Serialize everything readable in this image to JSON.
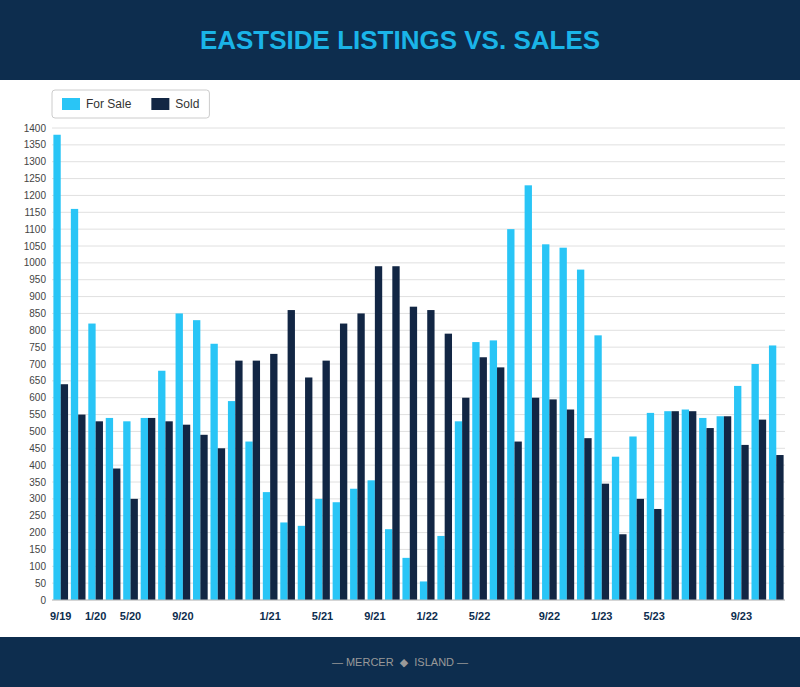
{
  "chart_data": {
    "type": "bar",
    "title": "EASTSIDE LISTINGS VS. SALES",
    "annotations": [
      "— MERCER  ◆  ISLAND —"
    ],
    "categories": [
      "9/19",
      null,
      "1/20",
      null,
      "5/20",
      null,
      null,
      "9/20",
      null,
      null,
      null,
      null,
      "1/21",
      null,
      null,
      "5/21",
      null,
      null,
      "9/21",
      null,
      null,
      "1/22",
      null,
      null,
      "5/22",
      null,
      null,
      null,
      "9/22",
      null,
      null,
      "1/23",
      null,
      null,
      "5/23",
      null,
      null,
      null,
      null,
      "9/23",
      null,
      null
    ],
    "series": [
      {
        "name": "For Sale",
        "color": "#29c5f6",
        "values": [
          1380,
          1160,
          820,
          540,
          530,
          540,
          680,
          850,
          830,
          760,
          590,
          470,
          320,
          230,
          220,
          300,
          290,
          330,
          355,
          210,
          125,
          55,
          190,
          530,
          765,
          770,
          1100,
          1230,
          1055,
          1045,
          980,
          785,
          425,
          485,
          555,
          560,
          565,
          540,
          545,
          635,
          700,
          755
        ]
      },
      {
        "name": "Sold",
        "color": "#122644",
        "values": [
          640,
          550,
          530,
          390,
          300,
          540,
          530,
          520,
          490,
          450,
          710,
          710,
          730,
          860,
          660,
          710,
          820,
          850,
          990,
          990,
          870,
          860,
          790,
          600,
          720,
          690,
          470,
          600,
          595,
          565,
          480,
          345,
          195,
          300,
          270,
          560,
          560,
          510,
          545,
          460,
          535,
          430
        ]
      }
    ],
    "ylim": [
      0,
      1400
    ],
    "yticks": [
      0,
      50,
      100,
      150,
      200,
      250,
      300,
      350,
      400,
      450,
      500,
      550,
      600,
      650,
      700,
      750,
      800,
      850,
      900,
      950,
      1000,
      1050,
      1100,
      1150,
      1200,
      1250,
      1300,
      1350,
      1400
    ],
    "grid": true,
    "legend": "upper left"
  }
}
